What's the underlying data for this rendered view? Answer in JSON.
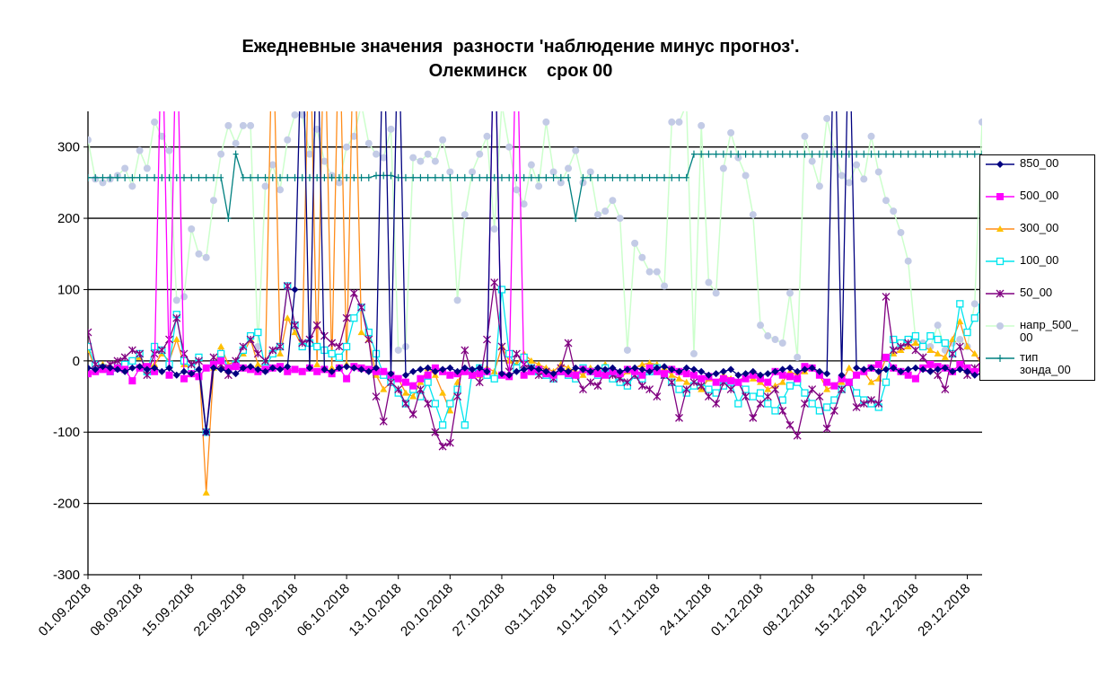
{
  "chart_data": {
    "type": "line",
    "title": "Ежедневные значения  разности 'наблюдение минус прогноз'.",
    "subtitle": "Олекминск    срок 00",
    "categories": [
      "01.09.2018",
      null,
      null,
      null,
      null,
      null,
      null,
      "08.09.2018",
      null,
      null,
      null,
      null,
      null,
      null,
      "15.09.2018",
      null,
      null,
      null,
      null,
      null,
      null,
      "22.09.2018",
      null,
      null,
      null,
      null,
      null,
      null,
      "29.09.2018",
      null,
      null,
      null,
      null,
      null,
      null,
      "06.10.2018",
      null,
      null,
      null,
      null,
      null,
      null,
      "13.10.2018",
      null,
      null,
      null,
      null,
      null,
      null,
      "20.10.2018",
      null,
      null,
      null,
      null,
      null,
      null,
      "27.10.2018",
      null,
      null,
      null,
      null,
      null,
      null,
      "03.11.2018",
      null,
      null,
      null,
      null,
      null,
      null,
      "10.11.2018",
      null,
      null,
      null,
      null,
      null,
      null,
      "17.11.2018",
      null,
      null,
      null,
      null,
      null,
      null,
      "24.11.2018",
      null,
      null,
      null,
      null,
      null,
      null,
      "01.12.2018",
      null,
      null,
      null,
      null,
      null,
      null,
      "08.12.2018",
      null,
      null,
      null,
      null,
      null,
      null,
      "15.12.2018",
      null,
      null,
      null,
      null,
      null,
      null,
      "22.12.2018",
      null,
      null,
      null,
      null,
      null,
      null,
      "29.12.2018",
      null,
      null
    ],
    "ylim": [
      -300,
      350
    ],
    "yticks": [
      -300,
      -200,
      -100,
      0,
      100,
      200,
      300
    ],
    "grid": true,
    "legend": "right",
    "series": [
      {
        "name": "850_00",
        "color": "#000080",
        "marker": "diamond",
        "values": [
          -10,
          -12,
          -8,
          -10,
          -12,
          -15,
          -10,
          -8,
          -12,
          -10,
          -15,
          -10,
          -20,
          -15,
          -18,
          -12,
          -100,
          -10,
          -12,
          -15,
          -18,
          -10,
          -8,
          -12,
          -15,
          -10,
          -12,
          -8,
          100,
          500,
          -10,
          500,
          -12,
          -15,
          -10,
          -8,
          -10,
          -12,
          -15,
          -10,
          500,
          -18,
          500,
          -20,
          -15,
          -12,
          -10,
          -15,
          -12,
          -10,
          -15,
          -10,
          -12,
          -10,
          -15,
          500,
          -18,
          -20,
          -15,
          -12,
          -10,
          -12,
          -15,
          -18,
          -12,
          -15,
          -10,
          -12,
          -15,
          -10,
          -12,
          -10,
          -15,
          -12,
          -10,
          -12,
          -15,
          -10,
          -8,
          -12,
          -15,
          -10,
          -12,
          -15,
          -20,
          -18,
          -15,
          -12,
          -20,
          -18,
          -15,
          -20,
          -18,
          -15,
          -12,
          -10,
          -15,
          -12,
          -10,
          -15,
          -18,
          500,
          -20,
          500,
          -10,
          -12,
          -10,
          -15,
          -12,
          -10,
          -15,
          -12,
          -10,
          -12,
          -15,
          -12,
          -10,
          -15,
          -12,
          -15,
          -20,
          -18
        ]
      },
      {
        "name": "500_00",
        "color": "#ff00ff",
        "marker": "square",
        "values": [
          -18,
          -15,
          -12,
          -15,
          -10,
          -12,
          -28,
          -10,
          -8,
          -15,
          500,
          -20,
          500,
          -25,
          -18,
          -22,
          -10,
          -5,
          0,
          -10,
          -8,
          -10,
          -12,
          -15,
          -12,
          -10,
          -8,
          -15,
          -12,
          -15,
          -10,
          -15,
          -12,
          -18,
          -10,
          -25,
          -8,
          -10,
          -12,
          -15,
          -15,
          -20,
          -25,
          -30,
          -35,
          -25,
          -20,
          -10,
          -15,
          -20,
          -18,
          -15,
          -20,
          -18,
          -15,
          500,
          -20,
          -22,
          500,
          -20,
          -15,
          -12,
          -18,
          -20,
          -15,
          -18,
          -20,
          -12,
          -15,
          -18,
          -20,
          -15,
          -18,
          -12,
          -15,
          -20,
          -10,
          -15,
          -18,
          -12,
          -15,
          -18,
          -20,
          -25,
          -22,
          -30,
          -25,
          -28,
          -30,
          -25,
          -20,
          -25,
          -30,
          -15,
          -20,
          -22,
          -25,
          -8,
          -10,
          -20,
          -30,
          -35,
          -25,
          -30,
          -20,
          -15,
          -10,
          -5,
          5,
          -10,
          -15,
          -20,
          -25,
          -10,
          -5,
          -8,
          -10,
          -15,
          -5,
          -10,
          -15,
          -10
        ]
      },
      {
        "name": "300_00",
        "color": "#ff8c1a",
        "marker_color": "#ffc000",
        "marker": "triangle",
        "values": [
          15,
          -10,
          -5,
          -8,
          -10,
          -5,
          0,
          5,
          -10,
          -5,
          10,
          0,
          30,
          -5,
          -10,
          5,
          -185,
          -10,
          20,
          -5,
          0,
          10,
          30,
          -5,
          -10,
          500,
          10,
          60,
          40,
          20,
          500,
          -5,
          500,
          -10,
          500,
          -5,
          500,
          40,
          30,
          -20,
          -40,
          -30,
          -25,
          -45,
          -50,
          -30,
          -10,
          -20,
          -45,
          -70,
          -30,
          -10,
          -15,
          -20,
          -10,
          -15,
          20,
          0,
          -5,
          10,
          0,
          -5,
          -10,
          -15,
          -5,
          -10,
          -15,
          -20,
          -10,
          -15,
          -5,
          -20,
          -25,
          -15,
          -10,
          -5,
          -3,
          -5,
          -10,
          -20,
          -25,
          -30,
          -35,
          -40,
          -25,
          -30,
          -20,
          -25,
          -30,
          -20,
          -25,
          -30,
          -40,
          -35,
          -30,
          -15,
          -20,
          -15,
          -10,
          -20,
          -40,
          -35,
          -30,
          -10,
          -20,
          -15,
          -30,
          -25,
          5,
          10,
          15,
          20,
          25,
          20,
          15,
          10,
          5,
          30,
          55,
          20,
          10,
          -5
        ]
      },
      {
        "name": "100_00",
        "color": "#00e5ee",
        "marker": "hollow-square",
        "values": [
          20,
          -5,
          -10,
          -15,
          -10,
          -5,
          0,
          10,
          -15,
          20,
          15,
          -5,
          65,
          0,
          -10,
          5,
          -100,
          -5,
          10,
          -10,
          -5,
          15,
          35,
          40,
          -10,
          10,
          20,
          105,
          50,
          20,
          25,
          20,
          15,
          10,
          5,
          20,
          60,
          75,
          40,
          10,
          -20,
          -30,
          -45,
          -60,
          -40,
          -50,
          -30,
          -60,
          -90,
          -60,
          -40,
          -90,
          -15,
          -10,
          -20,
          -25,
          100,
          10,
          -10,
          5,
          -10,
          -15,
          -20,
          -25,
          -15,
          -20,
          -25,
          -10,
          -15,
          -20,
          -10,
          -25,
          -30,
          -35,
          -20,
          -25,
          -15,
          -10,
          -20,
          -30,
          -40,
          -45,
          -35,
          -30,
          -40,
          -45,
          -35,
          -30,
          -60,
          -40,
          -50,
          -45,
          -60,
          -70,
          -55,
          -35,
          -30,
          -45,
          -60,
          -70,
          -65,
          -55,
          -40,
          -30,
          -45,
          -55,
          -60,
          -65,
          -30,
          30,
          25,
          30,
          35,
          20,
          35,
          30,
          25,
          10,
          80,
          40,
          60,
          75
        ]
      },
      {
        "name": "50_00",
        "color": "#800080",
        "marker": "asterisk",
        "values": [
          40,
          -5,
          -10,
          -5,
          0,
          5,
          15,
          10,
          -20,
          10,
          15,
          30,
          60,
          10,
          -5,
          0,
          -100,
          5,
          -5,
          -20,
          0,
          20,
          30,
          10,
          0,
          15,
          20,
          105,
          50,
          25,
          30,
          50,
          35,
          25,
          20,
          60,
          95,
          75,
          30,
          -50,
          -85,
          -30,
          -40,
          -60,
          -75,
          -40,
          -60,
          -100,
          -120,
          -115,
          -50,
          15,
          -20,
          -30,
          30,
          110,
          20,
          -15,
          10,
          -5,
          -10,
          -20,
          -15,
          -25,
          -10,
          25,
          -20,
          -40,
          -30,
          -35,
          -15,
          -20,
          -25,
          -30,
          -20,
          -35,
          -40,
          -50,
          -20,
          -30,
          -80,
          -40,
          -30,
          -35,
          -50,
          -60,
          -30,
          -40,
          -30,
          -50,
          -80,
          -60,
          -50,
          -40,
          -70,
          -90,
          -105,
          -60,
          -40,
          -50,
          -95,
          -70,
          -40,
          -30,
          -65,
          -60,
          -55,
          -60,
          90,
          15,
          20,
          25,
          15,
          5,
          -10,
          -20,
          -40,
          10,
          20,
          -20,
          -10,
          0
        ]
      },
      {
        "name": "напр_500_00",
        "color": "#ccffcc",
        "marker_color": "#c3cbe6",
        "marker": "circle",
        "values": [
          310,
          255,
          250,
          255,
          260,
          270,
          245,
          295,
          270,
          335,
          315,
          295,
          85,
          90,
          185,
          150,
          145,
          225,
          290,
          330,
          305,
          330,
          330,
          20,
          245,
          275,
          240,
          310,
          345,
          345,
          290,
          325,
          280,
          260,
          250,
          300,
          315,
          360,
          305,
          290,
          285,
          325,
          15,
          20,
          285,
          280,
          290,
          280,
          310,
          265,
          85,
          205,
          265,
          290,
          315,
          185,
          360,
          300,
          240,
          220,
          275,
          245,
          335,
          265,
          250,
          270,
          295,
          250,
          265,
          205,
          210,
          225,
          200,
          15,
          165,
          145,
          125,
          125,
          105,
          335,
          335,
          360,
          10,
          330,
          110,
          95,
          270,
          320,
          285,
          260,
          205,
          50,
          35,
          30,
          25,
          95,
          5,
          315,
          280,
          245,
          340,
          295,
          260,
          250,
          275,
          255,
          315,
          265,
          225,
          210,
          180,
          140,
          30,
          25,
          20,
          50,
          15,
          25,
          30,
          20,
          80,
          335
        ]
      },
      {
        "name": "тип зонда_00",
        "color": "#008080",
        "marker": "plus",
        "values": [
          257,
          257,
          257,
          257,
          257,
          257,
          257,
          257,
          257,
          257,
          257,
          257,
          257,
          257,
          257,
          257,
          257,
          257,
          257,
          200,
          290,
          257,
          257,
          257,
          257,
          257,
          257,
          257,
          257,
          257,
          257,
          257,
          257,
          257,
          257,
          257,
          257,
          257,
          257,
          260,
          260,
          260,
          257,
          257,
          257,
          257,
          257,
          257,
          257,
          257,
          257,
          257,
          257,
          257,
          257,
          257,
          257,
          257,
          257,
          257,
          257,
          257,
          257,
          257,
          257,
          257,
          200,
          257,
          257,
          257,
          257,
          257,
          257,
          257,
          257,
          257,
          257,
          257,
          257,
          257,
          257,
          257,
          290,
          290,
          290,
          290,
          290,
          290,
          290,
          290,
          290,
          290,
          290,
          290,
          290,
          290,
          290,
          290,
          290,
          290,
          290,
          290,
          290,
          290,
          290,
          290,
          290,
          290,
          290,
          290,
          290,
          290,
          290,
          290,
          290,
          290,
          290,
          290,
          290,
          290,
          290,
          290
        ]
      }
    ]
  }
}
